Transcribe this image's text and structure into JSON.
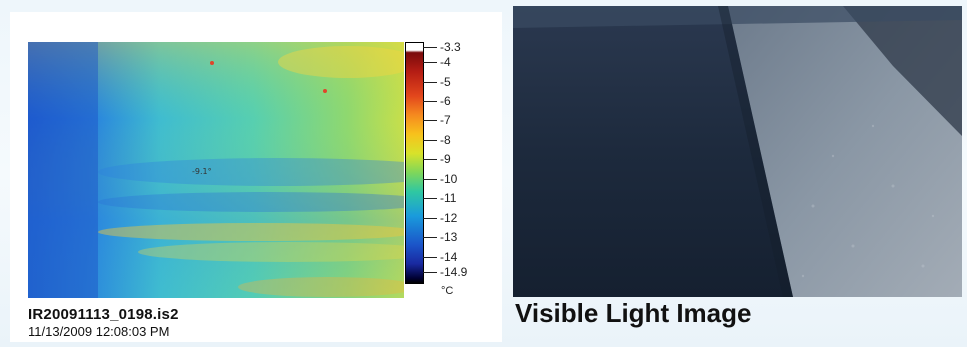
{
  "ir_panel": {
    "scale_ticks": [
      "-3.3",
      "-4",
      "-5",
      "-6",
      "-7",
      "-8",
      "-9",
      "-10",
      "-11",
      "-12",
      "-13",
      "-14",
      "-14.9"
    ],
    "unit": "°C",
    "filename": "IR20091113_0198.is2",
    "timestamp": "11/13/2009 12:08:03 PM"
  },
  "visible_panel": {
    "caption": "Visible Light Image"
  }
}
